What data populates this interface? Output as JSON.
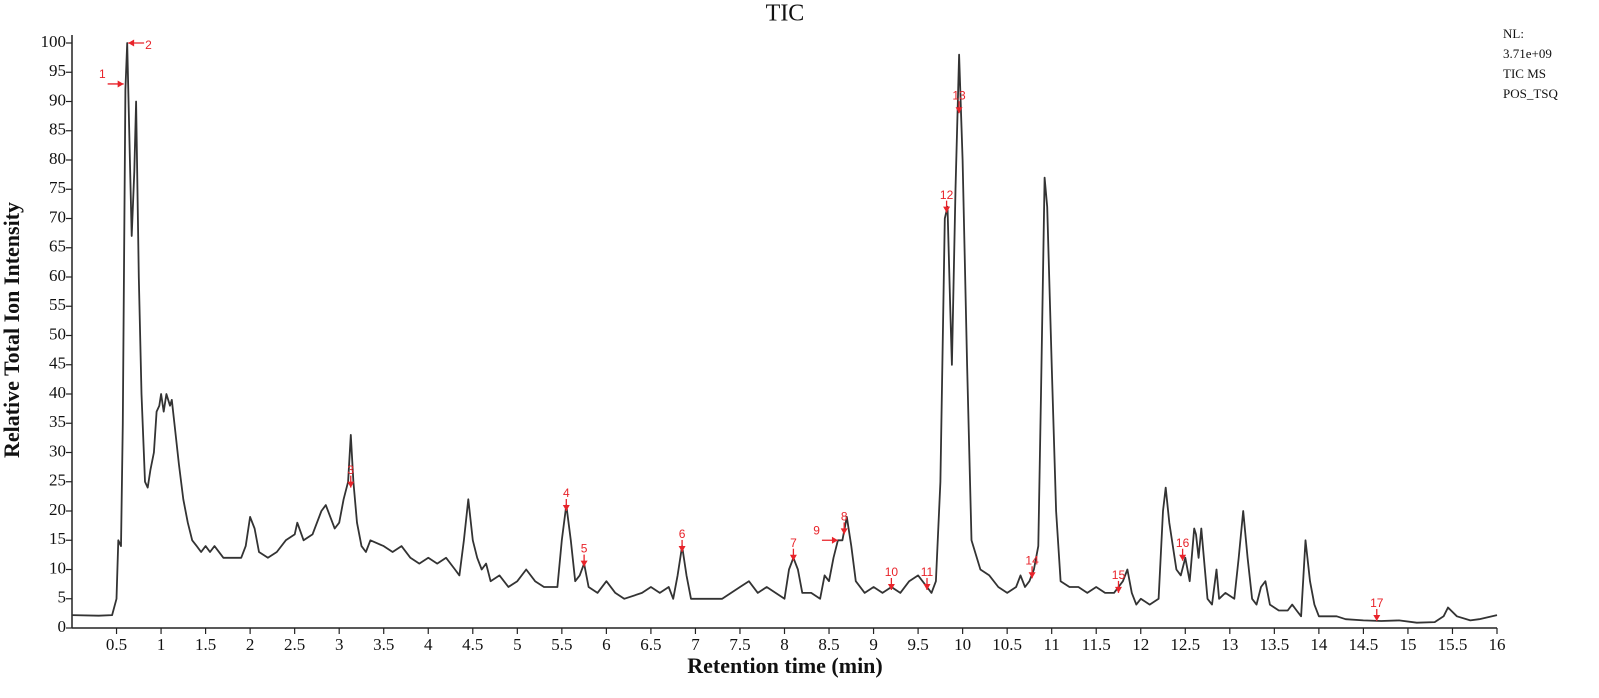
{
  "chart_data": {
    "type": "line",
    "title": "TIC",
    "x_label": "Retention time (min)",
    "y_label": "Relative Total Ion Intensity",
    "note": [
      "NL:",
      "3.71e+09",
      "TIC MS",
      "POS_TSQ"
    ],
    "color": "#333333",
    "annotation_color": "#e8232a",
    "x": [
      0,
      0.3,
      0.45,
      0.5,
      0.52,
      0.55,
      0.57,
      0.6,
      0.62,
      0.65,
      0.67,
      0.7,
      0.72,
      0.75,
      0.78,
      0.82,
      0.85,
      0.88,
      0.92,
      0.95,
      0.98,
      1.0,
      1.03,
      1.06,
      1.1,
      1.12,
      1.15,
      1.2,
      1.25,
      1.3,
      1.35,
      1.4,
      1.45,
      1.5,
      1.55,
      1.6,
      1.7,
      1.8,
      1.9,
      1.95,
      2.0,
      2.05,
      2.1,
      2.2,
      2.3,
      2.4,
      2.5,
      2.53,
      2.6,
      2.7,
      2.8,
      2.85,
      2.9,
      2.95,
      3.0,
      3.05,
      3.1,
      3.13,
      3.16,
      3.2,
      3.25,
      3.3,
      3.35,
      3.5,
      3.6,
      3.7,
      3.8,
      3.9,
      4.0,
      4.1,
      4.2,
      4.3,
      4.35,
      4.4,
      4.45,
      4.5,
      4.55,
      4.6,
      4.65,
      4.7,
      4.8,
      4.9,
      5.0,
      5.1,
      5.2,
      5.3,
      5.45,
      5.5,
      5.55,
      5.6,
      5.65,
      5.7,
      5.75,
      5.8,
      5.9,
      6.0,
      6.1,
      6.2,
      6.4,
      6.5,
      6.6,
      6.7,
      6.75,
      6.8,
      6.85,
      6.9,
      6.95,
      7.1,
      7.3,
      7.5,
      7.6,
      7.7,
      7.8,
      7.9,
      8.0,
      8.05,
      8.1,
      8.15,
      8.2,
      8.3,
      8.4,
      8.45,
      8.5,
      8.55,
      8.6,
      8.65,
      8.7,
      8.75,
      8.8,
      8.9,
      9.0,
      9.1,
      9.2,
      9.3,
      9.4,
      9.5,
      9.6,
      9.65,
      9.7,
      9.75,
      9.8,
      9.83,
      9.86,
      9.88,
      9.92,
      9.96,
      10.0,
      10.05,
      10.1,
      10.2,
      10.3,
      10.4,
      10.5,
      10.6,
      10.65,
      10.7,
      10.75,
      10.8,
      10.85,
      10.88,
      10.92,
      10.95,
      11.0,
      11.05,
      11.1,
      11.2,
      11.3,
      11.4,
      11.5,
      11.6,
      11.7,
      11.75,
      11.8,
      11.85,
      11.9,
      11.95,
      12.0,
      12.1,
      12.2,
      12.25,
      12.28,
      12.32,
      12.4,
      12.45,
      12.5,
      12.55,
      12.6,
      12.62,
      12.65,
      12.68,
      12.72,
      12.75,
      12.8,
      12.85,
      12.88,
      12.95,
      13.05,
      13.1,
      13.15,
      13.2,
      13.25,
      13.3,
      13.35,
      13.4,
      13.45,
      13.55,
      13.65,
      13.7,
      13.75,
      13.8,
      13.85,
      13.9,
      13.95,
      14.0,
      14.2,
      14.3,
      14.5,
      14.7,
      14.9,
      15.1,
      15.3,
      15.4,
      15.45,
      15.55,
      15.7,
      15.8,
      16.0
    ],
    "values": [
      2.2,
      2.1,
      2.2,
      5,
      15,
      14,
      35,
      92,
      100,
      80,
      67,
      78,
      90,
      60,
      40,
      25,
      24,
      27,
      30,
      37,
      38,
      40,
      37,
      40,
      38,
      39,
      35,
      28,
      22,
      18,
      15,
      14,
      13,
      14,
      13,
      14,
      12,
      12,
      12,
      14,
      19,
      17,
      13,
      12,
      13,
      15,
      16,
      18,
      15,
      16,
      20,
      21,
      19,
      17,
      18,
      22,
      25,
      33,
      25,
      18,
      14,
      13,
      15,
      14,
      13,
      14,
      12,
      11,
      12,
      11,
      12,
      10,
      9,
      15,
      22,
      15,
      12,
      10,
      11,
      8,
      9,
      7,
      8,
      10,
      8,
      7,
      7,
      15,
      21,
      15,
      8,
      9,
      11,
      7,
      6,
      8,
      6,
      5,
      6,
      7,
      6,
      7,
      5,
      9,
      14,
      9,
      5,
      5,
      5,
      7,
      8,
      6,
      7,
      6,
      5,
      10,
      12,
      10,
      6,
      6,
      5,
      9,
      8,
      12,
      15,
      15,
      19,
      14,
      8,
      6,
      7,
      6,
      7,
      6,
      8,
      9,
      7,
      6,
      8,
      25,
      70,
      72,
      55,
      45,
      75,
      98,
      80,
      45,
      15,
      10,
      9,
      7,
      6,
      7,
      9,
      7,
      8,
      10,
      14,
      40,
      77,
      72,
      45,
      20,
      8,
      7,
      7,
      6,
      7,
      6,
      6,
      7,
      8,
      10,
      6,
      4,
      5,
      4,
      5,
      20,
      24,
      18,
      10,
      9,
      12,
      8,
      17,
      16,
      12,
      17,
      10,
      5,
      4,
      10,
      5,
      6,
      5,
      12,
      20,
      12,
      5,
      4,
      7,
      8,
      4,
      3,
      3,
      4,
      3,
      2,
      15,
      8,
      4,
      2,
      2,
      1.5,
      1.3,
      1.2,
      1.3,
      0.9,
      1.0,
      2,
      3.5,
      2,
      1.3,
      1.5,
      2.2
    ],
    "annotations": [
      {
        "label": "1",
        "x": 0.58,
        "y": 93,
        "from": "left"
      },
      {
        "label": "2",
        "x": 0.63,
        "y": 100,
        "from": "right"
      },
      {
        "label": "3",
        "x": 3.13,
        "y": 24,
        "from": "above"
      },
      {
        "label": "4",
        "x": 5.55,
        "y": 20,
        "from": "above"
      },
      {
        "label": "5",
        "x": 5.75,
        "y": 10.5,
        "from": "above"
      },
      {
        "label": "6",
        "x": 6.85,
        "y": 13,
        "from": "above"
      },
      {
        "label": "7",
        "x": 8.1,
        "y": 11.5,
        "from": "above"
      },
      {
        "label": "8",
        "x": 8.67,
        "y": 16,
        "from": "above"
      },
      {
        "label": "9",
        "x": 8.6,
        "y": 15,
        "from": "left"
      },
      {
        "label": "10",
        "x": 9.2,
        "y": 6.5,
        "from": "above"
      },
      {
        "label": "11",
        "x": 9.6,
        "y": 6.5,
        "from": "above"
      },
      {
        "label": "12",
        "x": 9.82,
        "y": 71,
        "from": "above"
      },
      {
        "label": "13",
        "x": 9.96,
        "y": 88,
        "from": "above"
      },
      {
        "label": "14",
        "x": 10.78,
        "y": 8.5,
        "from": "above"
      },
      {
        "label": "15",
        "x": 11.75,
        "y": 6,
        "from": "above"
      },
      {
        "label": "16",
        "x": 12.47,
        "y": 11.5,
        "from": "above"
      },
      {
        "label": "17",
        "x": 14.65,
        "y": 1.2,
        "from": "above"
      }
    ],
    "xlim": [
      0,
      16
    ],
    "ylim": [
      0,
      100
    ],
    "xticks": [
      0.5,
      1,
      1.5,
      2,
      2.5,
      3,
      3.5,
      4,
      4.5,
      5,
      5.5,
      6,
      6.5,
      7,
      7.5,
      8,
      8.5,
      9,
      9.5,
      10,
      10.5,
      11,
      11.5,
      12,
      12.5,
      13,
      13.5,
      14,
      14.5,
      15,
      15.5,
      16
    ],
    "yticks": [
      0,
      5,
      10,
      15,
      20,
      25,
      30,
      35,
      40,
      45,
      50,
      55,
      60,
      65,
      70,
      75,
      80,
      85,
      90,
      95,
      100
    ]
  }
}
